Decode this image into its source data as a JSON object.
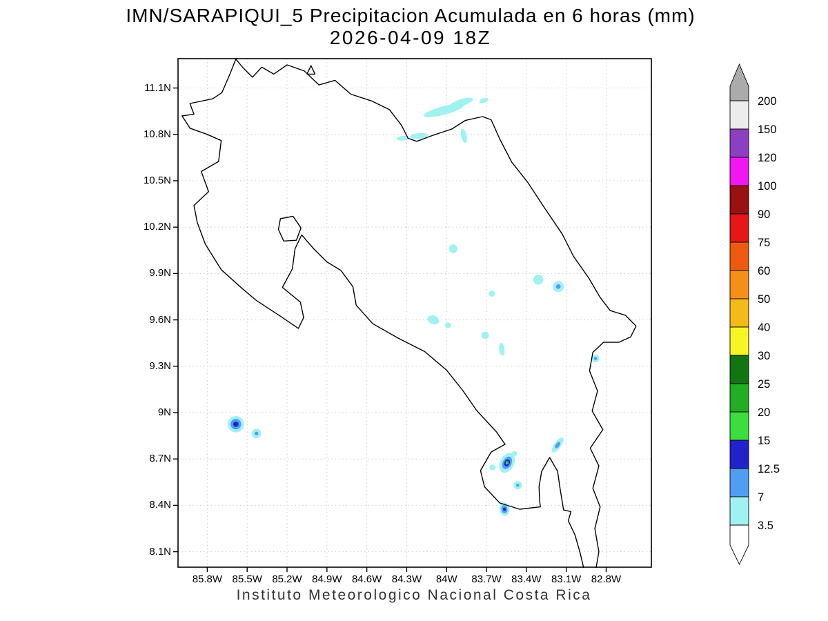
{
  "chart_data": {
    "type": "heatmap",
    "title": "IMN/SARAPIQUI_5 Precipitacion Acumulada en 6 horas (mm)",
    "subtitle": "2026-04-09 18Z",
    "caption": "Instituto Meteorologico Nacional Costa Rica",
    "unit": "mm",
    "lon_range": [
      86.02,
      82.46
    ],
    "lat_range": [
      11.29,
      8.0
    ],
    "grid": "dotted",
    "x_ticks": [
      {
        "value": 85.8,
        "label": "85.8W"
      },
      {
        "value": 85.5,
        "label": "85.5W"
      },
      {
        "value": 85.2,
        "label": "85.2W"
      },
      {
        "value": 84.9,
        "label": "84.9W"
      },
      {
        "value": 84.6,
        "label": "84.6W"
      },
      {
        "value": 84.3,
        "label": "84.3W"
      },
      {
        "value": 84.0,
        "label": "84W"
      },
      {
        "value": 83.7,
        "label": "83.7W"
      },
      {
        "value": 83.4,
        "label": "83.4W"
      },
      {
        "value": 83.1,
        "label": "83.1W"
      },
      {
        "value": 82.8,
        "label": "82.8W"
      }
    ],
    "y_ticks": [
      {
        "value": 11.1,
        "label": "11.1N"
      },
      {
        "value": 10.8,
        "label": "10.8N"
      },
      {
        "value": 10.5,
        "label": "10.5N"
      },
      {
        "value": 10.2,
        "label": "10.2N"
      },
      {
        "value": 9.9,
        "label": "9.9N"
      },
      {
        "value": 9.6,
        "label": "9.6N"
      },
      {
        "value": 9.3,
        "label": "9.3N"
      },
      {
        "value": 9.0,
        "label": "9N"
      },
      {
        "value": 8.7,
        "label": "8.7N"
      },
      {
        "value": 8.4,
        "label": "8.4N"
      },
      {
        "value": 8.1,
        "label": "8.1N"
      }
    ],
    "colorbar": {
      "levels": [
        3.5,
        7,
        12.5,
        15,
        20,
        25,
        30,
        40,
        50,
        60,
        75,
        90,
        100,
        120,
        150,
        200
      ],
      "range_colors": [
        "#9ff2f0",
        "#4f9ef2",
        "#2222cc",
        "#3ddd3d",
        "#22ae22",
        "#117611",
        "#f6f622",
        "#f3bb17",
        "#f58f17",
        "#ef5a11",
        "#e51717",
        "#991111",
        "#f117f1",
        "#8c3fc0",
        "#ececec"
      ],
      "below_color": "#ffffff",
      "above_color": "#ababab"
    },
    "coastline": [
      [
        [
          85.93,
          10.84
        ],
        [
          85.99,
          10.92
        ],
        [
          85.9,
          10.93
        ],
        [
          85.93,
          11.0
        ],
        [
          85.76,
          11.03
        ],
        [
          85.69,
          11.07
        ],
        [
          85.63,
          11.19
        ],
        [
          85.585,
          11.287
        ],
        [
          85.53,
          11.23
        ],
        [
          85.46,
          11.17
        ],
        [
          85.39,
          11.235
        ],
        [
          85.3,
          11.19
        ],
        [
          85.2,
          11.25
        ],
        [
          85.07,
          11.21
        ],
        [
          84.96,
          11.12
        ],
        [
          84.84,
          11.15
        ],
        [
          84.72,
          11.06
        ],
        [
          84.56,
          11.015
        ],
        [
          84.43,
          10.96
        ],
        [
          84.34,
          10.86
        ],
        [
          84.29,
          10.775
        ],
        [
          84.225,
          10.755
        ],
        [
          84.1,
          10.795
        ],
        [
          83.96,
          10.835
        ],
        [
          83.86,
          10.89
        ],
        [
          83.73,
          10.915
        ],
        [
          83.665,
          10.895
        ],
        [
          83.6,
          10.77
        ],
        [
          83.51,
          10.62
        ],
        [
          83.39,
          10.49
        ],
        [
          83.26,
          10.32
        ],
        [
          83.13,
          10.155
        ],
        [
          83.045,
          10.01
        ],
        [
          82.93,
          9.87
        ],
        [
          82.845,
          9.745
        ],
        [
          82.77,
          9.66
        ],
        [
          82.655,
          9.63
        ],
        [
          82.575,
          9.56
        ],
        [
          82.615,
          9.49
        ],
        [
          82.705,
          9.455
        ],
        [
          82.82,
          9.455
        ],
        [
          82.9,
          9.39
        ],
        [
          82.925,
          9.27
        ],
        [
          82.865,
          9.14
        ],
        [
          82.905,
          9.01
        ],
        [
          82.825,
          8.89
        ],
        [
          82.92,
          8.77
        ],
        [
          82.855,
          8.655
        ],
        [
          82.9,
          8.51
        ],
        [
          82.845,
          8.39
        ],
        [
          82.885,
          8.25
        ],
        [
          82.855,
          8.1
        ],
        [
          82.875,
          7.998
        ]
      ],
      [
        [
          82.97,
          7.998
        ],
        [
          82.995,
          8.09
        ],
        [
          83.035,
          8.21
        ],
        [
          83.085,
          8.3
        ],
        [
          83.065,
          8.36
        ],
        [
          83.12,
          8.37
        ],
        [
          83.145,
          8.5
        ],
        [
          83.165,
          8.62
        ],
        [
          83.225,
          8.71
        ],
        [
          83.285,
          8.62
        ],
        [
          83.305,
          8.52
        ],
        [
          83.3,
          8.43
        ],
        [
          83.295,
          8.39
        ],
        [
          83.45,
          8.375
        ],
        [
          83.6,
          8.415
        ],
        [
          83.715,
          8.52
        ],
        [
          83.745,
          8.625
        ],
        [
          83.665,
          8.745
        ],
        [
          83.56,
          8.795
        ],
        [
          83.625,
          8.875
        ],
        [
          83.775,
          9.015
        ],
        [
          83.88,
          9.145
        ],
        [
          84.0,
          9.275
        ],
        [
          84.165,
          9.395
        ],
        [
          84.36,
          9.48
        ],
        [
          84.555,
          9.575
        ],
        [
          84.68,
          9.695
        ],
        [
          84.705,
          9.815
        ],
        [
          84.795,
          9.92
        ],
        [
          84.9,
          9.975
        ],
        [
          85.0,
          10.06
        ],
        [
          85.09,
          10.15
        ],
        [
          85.14,
          10.06
        ],
        [
          85.16,
          9.93
        ],
        [
          85.235,
          9.81
        ],
        [
          85.1,
          9.715
        ],
        [
          85.075,
          9.615
        ],
        [
          85.115,
          9.545
        ],
        [
          85.26,
          9.63
        ],
        [
          85.43,
          9.725
        ],
        [
          85.54,
          9.805
        ],
        [
          85.695,
          9.925
        ],
        [
          85.815,
          10.09
        ],
        [
          85.875,
          10.23
        ],
        [
          85.9,
          10.34
        ],
        [
          85.79,
          10.43
        ],
        [
          85.845,
          10.56
        ],
        [
          85.715,
          10.625
        ],
        [
          85.695,
          10.76
        ],
        [
          85.8,
          10.8
        ],
        [
          85.93,
          10.84
        ]
      ]
    ],
    "islands": [
      [
        [
          85.25,
          10.255
        ],
        [
          85.155,
          10.27
        ],
        [
          85.095,
          10.195
        ],
        [
          85.13,
          10.115
        ],
        [
          85.225,
          10.11
        ],
        [
          85.265,
          10.185
        ]
      ],
      [
        [
          85.02,
          11.245
        ],
        [
          84.99,
          11.19
        ],
        [
          85.05,
          11.19
        ]
      ]
    ],
    "precip_cells": [
      {
        "lon": 84.02,
        "lat": 10.955,
        "rot": -15,
        "rings": [
          {
            "level": 3.5,
            "rx": 0.155,
            "ry": 0.028
          }
        ]
      },
      {
        "lon": 83.89,
        "lat": 11.005,
        "rot": -18,
        "rings": [
          {
            "level": 3.5,
            "rx": 0.095,
            "ry": 0.022
          }
        ]
      },
      {
        "lon": 83.87,
        "lat": 10.79,
        "rot": 78,
        "rings": [
          {
            "level": 3.5,
            "rx": 0.055,
            "ry": 0.018
          }
        ]
      },
      {
        "lon": 84.21,
        "lat": 10.79,
        "rot": -6,
        "rings": [
          {
            "level": 3.5,
            "rx": 0.065,
            "ry": 0.018
          }
        ]
      },
      {
        "lon": 84.33,
        "lat": 10.775,
        "rot": -6,
        "rings": [
          {
            "level": 3.5,
            "rx": 0.045,
            "ry": 0.015
          }
        ]
      },
      {
        "lon": 83.72,
        "lat": 11.02,
        "rot": -20,
        "rings": [
          {
            "level": 3.5,
            "rx": 0.035,
            "ry": 0.015
          }
        ]
      },
      {
        "lon": 83.95,
        "lat": 10.06,
        "rot": 0,
        "rings": [
          {
            "level": 3.5,
            "rx": 0.032,
            "ry": 0.028
          }
        ]
      },
      {
        "lon": 83.31,
        "lat": 9.86,
        "rot": 0,
        "rings": [
          {
            "level": 3.5,
            "rx": 0.038,
            "ry": 0.032
          }
        ]
      },
      {
        "lon": 83.16,
        "lat": 9.815,
        "rot": 0,
        "rings": [
          {
            "level": 3.5,
            "rx": 0.042,
            "ry": 0.036
          },
          {
            "level": 7,
            "rx": 0.018,
            "ry": 0.015
          }
        ]
      },
      {
        "lon": 83.66,
        "lat": 9.77,
        "rot": 0,
        "rings": [
          {
            "level": 3.5,
            "rx": 0.024,
            "ry": 0.02
          }
        ]
      },
      {
        "lon": 84.1,
        "lat": 9.6,
        "rot": 20,
        "rings": [
          {
            "level": 3.5,
            "rx": 0.045,
            "ry": 0.028
          }
        ]
      },
      {
        "lon": 83.99,
        "lat": 9.565,
        "rot": 0,
        "rings": [
          {
            "level": 3.5,
            "rx": 0.022,
            "ry": 0.018
          }
        ]
      },
      {
        "lon": 83.71,
        "lat": 9.5,
        "rot": 0,
        "rings": [
          {
            "level": 3.5,
            "rx": 0.028,
            "ry": 0.024
          }
        ]
      },
      {
        "lon": 83.585,
        "lat": 9.41,
        "rot": 85,
        "rings": [
          {
            "level": 3.5,
            "rx": 0.048,
            "ry": 0.018
          }
        ]
      },
      {
        "lon": 82.88,
        "lat": 9.35,
        "rot": 0,
        "rings": [
          {
            "level": 3.5,
            "rx": 0.028,
            "ry": 0.025
          },
          {
            "level": 7,
            "rx": 0.012,
            "ry": 0.01
          }
        ]
      },
      {
        "lon": 85.585,
        "lat": 8.925,
        "rot": 0,
        "rings": [
          {
            "level": 3.5,
            "rx": 0.062,
            "ry": 0.053
          },
          {
            "level": 7,
            "rx": 0.04,
            "ry": 0.034
          },
          {
            "level": 12.5,
            "rx": 0.02,
            "ry": 0.017
          }
        ]
      },
      {
        "lon": 85.43,
        "lat": 8.865,
        "rot": 0,
        "rings": [
          {
            "level": 3.5,
            "rx": 0.036,
            "ry": 0.031
          },
          {
            "level": 7,
            "rx": 0.014,
            "ry": 0.012
          }
        ]
      },
      {
        "lon": 83.545,
        "lat": 8.675,
        "rot": -62,
        "rings": [
          {
            "level": 3.5,
            "rx": 0.08,
            "ry": 0.045
          },
          {
            "level": 7,
            "rx": 0.05,
            "ry": 0.028
          },
          {
            "level": 12.5,
            "rx": 0.028,
            "ry": 0.017
          },
          {
            "level": 15,
            "rx": 0.013,
            "ry": 0.009
          }
        ]
      },
      {
        "lon": 83.49,
        "lat": 8.735,
        "rot": 0,
        "rings": [
          {
            "level": 3.5,
            "rx": 0.02,
            "ry": 0.016
          }
        ]
      },
      {
        "lon": 83.655,
        "lat": 8.645,
        "rot": 0,
        "rings": [
          {
            "level": 3.5,
            "rx": 0.024,
            "ry": 0.019
          }
        ]
      },
      {
        "lon": 83.465,
        "lat": 8.53,
        "rot": 0,
        "rings": [
          {
            "level": 3.5,
            "rx": 0.032,
            "ry": 0.027
          },
          {
            "level": 7,
            "rx": 0.012,
            "ry": 0.01
          }
        ]
      },
      {
        "lon": 83.565,
        "lat": 8.375,
        "rot": 80,
        "rings": [
          {
            "level": 3.5,
            "rx": 0.05,
            "ry": 0.032
          },
          {
            "level": 7,
            "rx": 0.03,
            "ry": 0.02
          },
          {
            "level": 12.5,
            "rx": 0.013,
            "ry": 0.009
          }
        ]
      },
      {
        "lon": 83.165,
        "lat": 8.79,
        "rot": -55,
        "rings": [
          {
            "level": 3.5,
            "rx": 0.068,
            "ry": 0.022
          },
          {
            "level": 7,
            "rx": 0.028,
            "ry": 0.012
          }
        ]
      }
    ]
  }
}
